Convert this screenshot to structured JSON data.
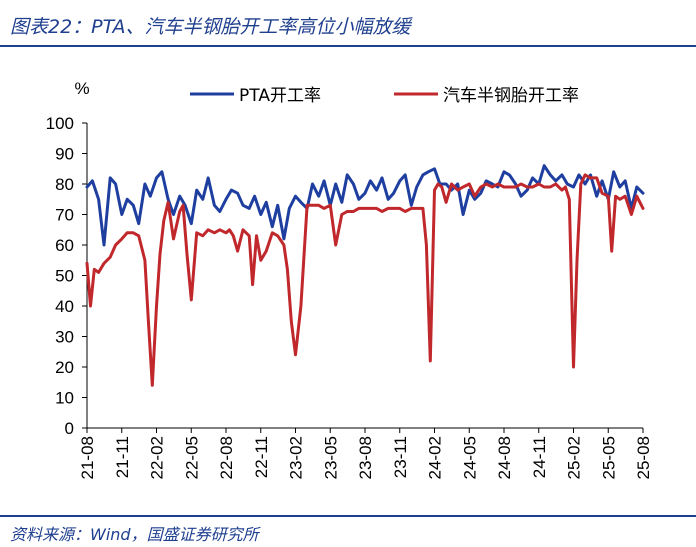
{
  "header": {
    "title": "图表22：PTA、汽车半钢胎开工率高位小幅放缓"
  },
  "footer": {
    "source": "资料来源：Wind，国盛证券研究所"
  },
  "chart_data": {
    "type": "line",
    "ylabel": "%",
    "ylim": [
      0,
      100
    ],
    "yticks": [
      0,
      10,
      20,
      30,
      40,
      50,
      60,
      70,
      80,
      90,
      100
    ],
    "xlim": [
      "2021-08",
      "2025-08"
    ],
    "xticks": [
      "21-08",
      "21-11",
      "22-02",
      "22-05",
      "22-08",
      "22-11",
      "23-02",
      "23-05",
      "23-08",
      "23-11",
      "24-02",
      "24-05",
      "24-08",
      "24-11",
      "25-02",
      "25-05",
      "25-08"
    ],
    "legend_position": "top",
    "grid": false,
    "colors": {
      "PTA开工率": "#1f3fa0",
      "汽车半钢胎开工率": "#c0282c"
    },
    "series": [
      {
        "name": "PTA开工率",
        "x": [
          "2021-08",
          "2021-08-15",
          "2021-09",
          "2021-09-15",
          "2021-10",
          "2021-10-15",
          "2021-11",
          "2021-11-15",
          "2021-12",
          "2021-12-15",
          "2022-01",
          "2022-01-15",
          "2022-02",
          "2022-02-15",
          "2022-03",
          "2022-03-15",
          "2022-04",
          "2022-04-15",
          "2022-05",
          "2022-05-15",
          "2022-06",
          "2022-06-15",
          "2022-07",
          "2022-07-15",
          "2022-08",
          "2022-08-15",
          "2022-09",
          "2022-09-15",
          "2022-10",
          "2022-10-15",
          "2022-11",
          "2022-11-15",
          "2022-12",
          "2022-12-15",
          "2023-01",
          "2023-01-15",
          "2023-02",
          "2023-02-15",
          "2023-03",
          "2023-03-15",
          "2023-04",
          "2023-04-15",
          "2023-05",
          "2023-05-15",
          "2023-06",
          "2023-06-15",
          "2023-07",
          "2023-07-15",
          "2023-08",
          "2023-08-15",
          "2023-09",
          "2023-09-15",
          "2023-10",
          "2023-10-15",
          "2023-11",
          "2023-11-15",
          "2023-12",
          "2023-12-15",
          "2024-01",
          "2024-01-15",
          "2024-02",
          "2024-02-15",
          "2024-03",
          "2024-03-15",
          "2024-04",
          "2024-04-15",
          "2024-05",
          "2024-05-15",
          "2024-06",
          "2024-06-15",
          "2024-07",
          "2024-07-15",
          "2024-08",
          "2024-08-15",
          "2024-09",
          "2024-09-15",
          "2024-10",
          "2024-10-15",
          "2024-11",
          "2024-11-15",
          "2024-12",
          "2024-12-15",
          "2025-01",
          "2025-01-15",
          "2025-02",
          "2025-02-15",
          "2025-03",
          "2025-03-15",
          "2025-04",
          "2025-04-15",
          "2025-05",
          "2025-05-15",
          "2025-06",
          "2025-06-15",
          "2025-07",
          "2025-07-15",
          "2025-08"
        ],
        "values": [
          79,
          81,
          75,
          60,
          82,
          80,
          70,
          75,
          73,
          67,
          80,
          76,
          82,
          84,
          75,
          70,
          76,
          73,
          67,
          78,
          75,
          82,
          73,
          71,
          75,
          78,
          77,
          73,
          72,
          76,
          70,
          74,
          66,
          73,
          62,
          72,
          76,
          74,
          72,
          80,
          76,
          81,
          73,
          80,
          74,
          83,
          80,
          75,
          77,
          81,
          78,
          82,
          75,
          77,
          81,
          83,
          73,
          79,
          83,
          84,
          85,
          80,
          80,
          78,
          80,
          70,
          78,
          75,
          77,
          81,
          80,
          79,
          84,
          83,
          80,
          76,
          78,
          82,
          80,
          86,
          83,
          81,
          83,
          80,
          79,
          83,
          80,
          83,
          76,
          81,
          75,
          84,
          79,
          81,
          72,
          79,
          77
        ]
      },
      {
        "name": "汽车半钢胎开工率",
        "x": [
          "2021-08",
          "2021-08-10",
          "2021-08-20",
          "2021-09",
          "2021-09-15",
          "2021-10",
          "2021-10-15",
          "2021-11",
          "2021-11-15",
          "2021-12",
          "2021-12-15",
          "2022-01",
          "2022-01-10",
          "2022-01-20",
          "2022-02",
          "2022-02-10",
          "2022-02-20",
          "2022-03",
          "2022-03-15",
          "2022-04",
          "2022-04-10",
          "2022-04-20",
          "2022-05",
          "2022-05-15",
          "2022-06",
          "2022-06-15",
          "2022-07",
          "2022-07-15",
          "2022-08",
          "2022-08-10",
          "2022-08-20",
          "2022-09",
          "2022-09-15",
          "2022-10",
          "2022-10-10",
          "2022-10-20",
          "2022-11",
          "2022-11-15",
          "2022-12",
          "2022-12-15",
          "2023-01",
          "2023-01-10",
          "2023-01-20",
          "2023-02",
          "2023-02-15",
          "2023-03",
          "2023-03-15",
          "2023-04",
          "2023-04-15",
          "2023-05",
          "2023-05-15",
          "2023-06",
          "2023-06-15",
          "2023-07",
          "2023-07-15",
          "2023-08",
          "2023-08-15",
          "2023-09",
          "2023-09-15",
          "2023-10",
          "2023-10-15",
          "2023-11",
          "2023-11-15",
          "2023-12",
          "2023-12-15",
          "2024-01",
          "2024-01-10",
          "2024-01-20",
          "2024-02",
          "2024-02-10",
          "2024-02-20",
          "2024-03",
          "2024-03-15",
          "2024-04",
          "2024-04-15",
          "2024-05",
          "2024-05-15",
          "2024-06",
          "2024-06-15",
          "2024-07",
          "2024-07-15",
          "2024-08",
          "2024-08-15",
          "2024-09",
          "2024-09-15",
          "2024-10",
          "2024-10-15",
          "2024-11",
          "2024-11-15",
          "2024-12",
          "2024-12-15",
          "2025-01",
          "2025-01-10",
          "2025-01-20",
          "2025-02",
          "2025-02-10",
          "2025-02-20",
          "2025-03",
          "2025-03-15",
          "2025-04",
          "2025-04-15",
          "2025-05",
          "2025-05-10",
          "2025-05-20",
          "2025-06",
          "2025-06-15",
          "2025-07",
          "2025-07-15",
          "2025-08"
        ],
        "values": [
          54,
          40,
          52,
          51,
          54,
          56,
          60,
          62,
          64,
          64,
          63,
          55,
          35,
          14,
          40,
          57,
          68,
          74,
          62,
          71,
          73,
          57,
          42,
          64,
          63,
          65,
          64,
          65,
          64,
          65,
          63,
          58,
          65,
          63,
          47,
          63,
          55,
          58,
          64,
          63,
          60,
          52,
          35,
          24,
          40,
          73,
          73,
          73,
          72,
          73,
          60,
          70,
          71,
          71,
          72,
          72,
          72,
          72,
          71,
          72,
          72,
          72,
          71,
          72,
          72,
          72,
          60,
          22,
          78,
          80,
          79,
          74,
          80,
          78,
          79,
          80,
          76,
          79,
          80,
          79,
          80,
          79,
          79,
          79,
          80,
          79,
          79,
          80,
          79,
          79,
          80,
          78,
          79,
          75,
          20,
          55,
          80,
          83,
          82,
          82,
          77,
          76,
          58,
          76,
          75,
          76,
          70,
          76,
          72
        ]
      }
    ]
  }
}
